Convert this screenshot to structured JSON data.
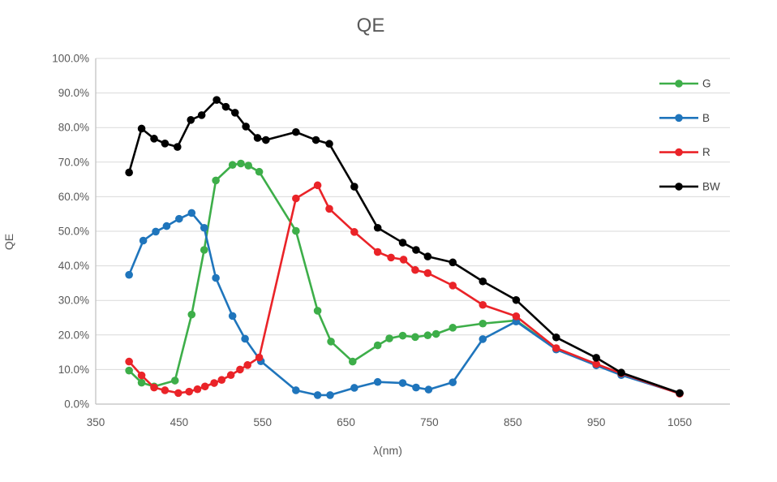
{
  "chart_data": {
    "type": "line",
    "title": "QE",
    "xlabel": "λ(nm)",
    "ylabel": "QE",
    "grid": "horizontal",
    "legend_position": "top-right-inside",
    "x_axis": {
      "min": 350,
      "max": 1110,
      "ticks": [
        350,
        450,
        550,
        650,
        750,
        850,
        950,
        1050
      ]
    },
    "y_axis": {
      "min": 0,
      "max": 100,
      "tick_values": [
        0,
        10,
        20,
        30,
        40,
        50,
        60,
        70,
        80,
        90,
        100
      ],
      "tick_labels": [
        "0.0%",
        "10.0%",
        "20.0%",
        "30.0%",
        "40.0%",
        "50.0%",
        "60.0%",
        "70.0%",
        "80.0%",
        "90.0%",
        "100.0%"
      ]
    },
    "colors": {
      "grid": "#D9D9D9",
      "axis": "#BFBFBF",
      "text": "#595959"
    },
    "series": [
      {
        "name": "G",
        "color": "#3DAE49",
        "points": [
          [
            390,
            9.7
          ],
          [
            405,
            6.2
          ],
          [
            420,
            5.1
          ],
          [
            445,
            6.8
          ],
          [
            465,
            25.9
          ],
          [
            480,
            44.6
          ],
          [
            494,
            64.7
          ],
          [
            514,
            69.2
          ],
          [
            524,
            69.6
          ],
          [
            533,
            69.0
          ],
          [
            546,
            67.2
          ],
          [
            590,
            50.1
          ],
          [
            616,
            27.0
          ],
          [
            632,
            18.1
          ],
          [
            658,
            12.3
          ],
          [
            688,
            17.0
          ],
          [
            702,
            19.0
          ],
          [
            718,
            19.8
          ],
          [
            733,
            19.4
          ],
          [
            748,
            19.9
          ],
          [
            758,
            20.3
          ],
          [
            778,
            22.1
          ],
          [
            814,
            23.3
          ],
          [
            854,
            24.2
          ],
          [
            902,
            15.9
          ],
          [
            950,
            11.4
          ],
          [
            980,
            8.6
          ],
          [
            1050,
            3.1
          ]
        ]
      },
      {
        "name": "B",
        "color": "#1F75BC",
        "points": [
          [
            390,
            37.4
          ],
          [
            407,
            47.3
          ],
          [
            422,
            49.9
          ],
          [
            435,
            51.5
          ],
          [
            450,
            53.6
          ],
          [
            465,
            55.3
          ],
          [
            480,
            51.0
          ],
          [
            494,
            36.5
          ],
          [
            514,
            25.5
          ],
          [
            529,
            18.9
          ],
          [
            548,
            12.4
          ],
          [
            590,
            4.0
          ],
          [
            616,
            2.6
          ],
          [
            631,
            2.6
          ],
          [
            660,
            4.7
          ],
          [
            688,
            6.4
          ],
          [
            718,
            6.1
          ],
          [
            734,
            4.8
          ],
          [
            749,
            4.2
          ],
          [
            778,
            6.3
          ],
          [
            814,
            18.8
          ],
          [
            854,
            23.9
          ],
          [
            902,
            15.8
          ],
          [
            950,
            11.2
          ],
          [
            980,
            8.4
          ],
          [
            1050,
            3.1
          ]
        ]
      },
      {
        "name": "R",
        "color": "#EA2328",
        "points": [
          [
            390,
            12.3
          ],
          [
            405,
            8.3
          ],
          [
            420,
            4.8
          ],
          [
            433,
            4.0
          ],
          [
            449,
            3.2
          ],
          [
            462,
            3.6
          ],
          [
            472,
            4.3
          ],
          [
            481,
            5.1
          ],
          [
            492,
            6.1
          ],
          [
            501,
            7.0
          ],
          [
            512,
            8.4
          ],
          [
            523,
            10.0
          ],
          [
            532,
            11.3
          ],
          [
            546,
            13.5
          ],
          [
            590,
            59.5
          ],
          [
            616,
            63.3
          ],
          [
            630,
            56.5
          ],
          [
            660,
            49.8
          ],
          [
            688,
            44.0
          ],
          [
            704,
            42.4
          ],
          [
            719,
            41.8
          ],
          [
            733,
            38.8
          ],
          [
            748,
            37.9
          ],
          [
            778,
            34.3
          ],
          [
            814,
            28.7
          ],
          [
            854,
            25.4
          ],
          [
            902,
            16.2
          ],
          [
            950,
            11.6
          ],
          [
            980,
            8.9
          ],
          [
            1050,
            3.0
          ]
        ]
      },
      {
        "name": "BW",
        "color": "#000000",
        "points": [
          [
            390,
            67.0
          ],
          [
            405,
            79.7
          ],
          [
            420,
            76.8
          ],
          [
            433,
            75.4
          ],
          [
            448,
            74.4
          ],
          [
            464,
            82.2
          ],
          [
            477,
            83.6
          ],
          [
            495,
            88.0
          ],
          [
            506,
            86.0
          ],
          [
            517,
            84.3
          ],
          [
            530,
            80.3
          ],
          [
            544,
            77.0
          ],
          [
            554,
            76.4
          ],
          [
            590,
            78.7
          ],
          [
            614,
            76.4
          ],
          [
            630,
            75.3
          ],
          [
            660,
            62.9
          ],
          [
            688,
            51.0
          ],
          [
            718,
            46.7
          ],
          [
            734,
            44.6
          ],
          [
            748,
            42.7
          ],
          [
            778,
            41.0
          ],
          [
            814,
            35.5
          ],
          [
            854,
            30.1
          ],
          [
            902,
            19.3
          ],
          [
            950,
            13.4
          ],
          [
            980,
            9.1
          ],
          [
            1050,
            3.2
          ]
        ]
      }
    ]
  }
}
